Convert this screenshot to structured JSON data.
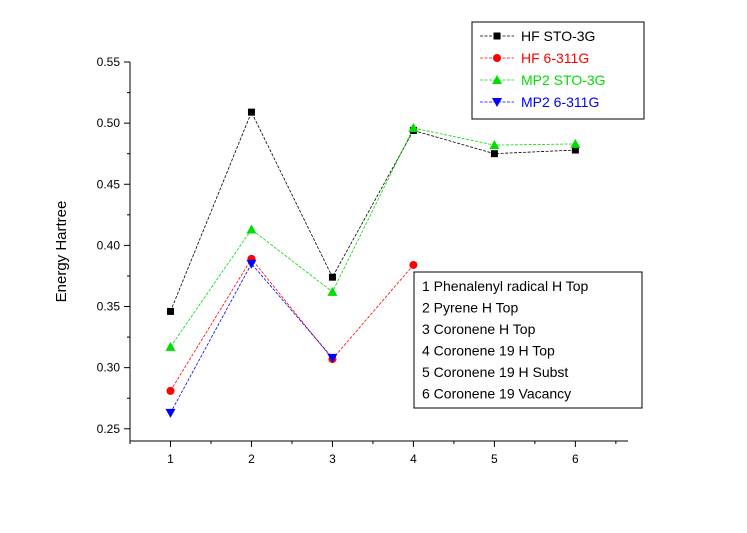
{
  "chart_data": {
    "type": "line",
    "title": "",
    "xlabel": "",
    "ylabel": "Energy Hartree",
    "xlim": [
      0.5,
      6.65
    ],
    "ylim": [
      0.24,
      0.55
    ],
    "xticks": [
      1,
      2,
      3,
      4,
      5,
      6
    ],
    "yticks": [
      0.25,
      0.3,
      0.35,
      0.4,
      0.45,
      0.5,
      0.55
    ],
    "ytick_labels": [
      "0.25",
      "0.30",
      "0.35",
      "0.40",
      "0.45",
      "0.50",
      "0.55"
    ],
    "xtick_labels": [
      "1",
      "2",
      "3",
      "4",
      "5",
      "6"
    ],
    "grid": false,
    "legend_position": "top-right",
    "series": [
      {
        "name": "HF STO-3G",
        "color": "#000000",
        "marker": "square",
        "x": [
          1,
          2,
          3,
          4,
          5,
          6
        ],
        "y": [
          0.346,
          0.509,
          0.374,
          0.494,
          0.475,
          0.478
        ]
      },
      {
        "name": "HF 6-311G",
        "color": "#ff0000",
        "marker": "circle",
        "x": [
          1,
          2,
          3,
          4
        ],
        "y": [
          0.281,
          0.389,
          0.307,
          0.384
        ]
      },
      {
        "name": "MP2 STO-3G",
        "color": "#00dd00",
        "marker": "triangle-up",
        "x": [
          1,
          2,
          3,
          4,
          5,
          6
        ],
        "y": [
          0.317,
          0.413,
          0.362,
          0.496,
          0.482,
          0.483
        ]
      },
      {
        "name": "MP2 6-311G",
        "color": "#0000ff",
        "marker": "triangle-down",
        "x": [
          1,
          2,
          3
        ],
        "y": [
          0.263,
          0.385,
          0.308
        ]
      }
    ],
    "annotation": {
      "lines": [
        "1 Phenalenyl radical H Top",
        "2 Pyrene H Top",
        "3 Coronene H Top",
        "4 Coronene 19 H Top",
        "5 Coronene 19 H Subst",
        "6 Coronene 19 Vacancy"
      ]
    }
  }
}
